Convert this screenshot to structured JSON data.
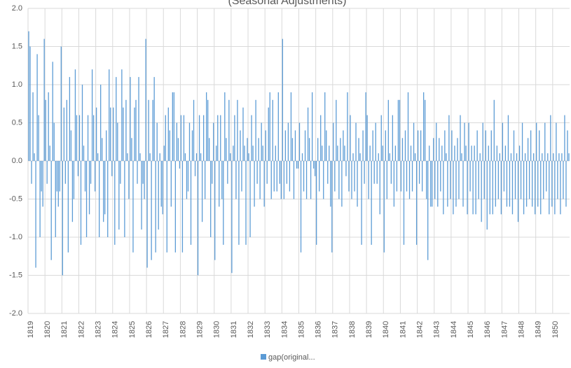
{
  "chart_data": {
    "type": "bar",
    "title": "(Seasonal Adjustments)",
    "color": "#5b9bd5",
    "grid": true,
    "legend": "bottom",
    "ylim": [
      -2,
      2
    ],
    "yticks": [
      {
        "value": -2,
        "label": "-2.0"
      },
      -1.5,
      {
        "value": -1,
        "label": "-1.0"
      },
      -0.5,
      {
        "value": 0,
        "label": "0.0"
      },
      0.5,
      {
        "value": 1,
        "label": "1.0"
      },
      1.5,
      {
        "value": 2,
        "label": "2.0"
      }
    ],
    "series": [
      {
        "name": "gap(original...",
        "color": "#5b9bd5",
        "values": [
          1.7,
          1.5,
          -0.3,
          0.9,
          0.1,
          -1.4,
          1.4,
          0.6,
          -1.0,
          -0.4,
          -0.6,
          1.6,
          0.8,
          -0.3,
          0.9,
          0.2,
          -1.3,
          1.3,
          0.5,
          -1.0,
          -0.4,
          -0.6,
          -0.4,
          1.5,
          -1.5,
          0.7,
          -0.3,
          0.8,
          -1.2,
          1.1,
          0.4,
          -0.8,
          -0.5,
          1.2,
          0.6,
          -0.2,
          0.6,
          -1.1,
          1.0,
          0.2,
          -0.4,
          -1.0,
          0.6,
          -0.7,
          -0.3,
          1.2,
          0.6,
          -0.4,
          0.7,
          0.1,
          -1.0,
          1.0,
          0.3,
          -0.8,
          -0.7,
          0.4,
          -1.0,
          1.2,
          0.7,
          -0.2,
          0.7,
          -1.1,
          1.1,
          0.5,
          -0.9,
          -0.3,
          1.2,
          0.7,
          -1.0,
          0.8,
          0.1,
          -0.5,
          1.1,
          0.3,
          -1.2,
          0.7,
          0.8,
          -0.3,
          1.1,
          0.1,
          -0.9,
          -0.3,
          -0.5,
          1.6,
          -1.4,
          0.8,
          0.1,
          -1.3,
          0.8,
          1.1,
          -1.2,
          0.5,
          -0.9,
          0.1,
          -0.6,
          -0.7,
          0.2,
          0.6,
          -1.2,
          0.7,
          0.4,
          -0.6,
          0.9,
          0.9,
          -1.2,
          0.5,
          0.3,
          -0.1,
          0.6,
          -1.2,
          0.6,
          0.1,
          -0.5,
          -0.4,
          0.5,
          -1.1,
          0.4,
          0.8,
          -0.2,
          0.1,
          -1.5,
          0.6,
          0.1,
          -0.8,
          0.6,
          -0.5,
          0.9,
          0.8,
          0.3,
          -1.0,
          -0.3,
          0.5,
          -1.3,
          0.2,
          0.6,
          -0.6,
          0.6,
          -0.5,
          -1.1,
          0.9,
          0.3,
          -0.3,
          0.8,
          0.1,
          -1.47,
          0.2,
          0.6,
          -0.5,
          0.8,
          -1.1,
          0.4,
          -0.4,
          0.7,
          0.2,
          -1.1,
          0.3,
          0.1,
          -1.0,
          0.6,
          0.2,
          -0.6,
          0.8,
          -0.3,
          0.3,
          -0.5,
          0.5,
          0.2,
          -0.6,
          0.4,
          -0.3,
          0.7,
          0.9,
          -0.5,
          0.8,
          -0.4,
          0.2,
          -0.4,
          0.9,
          -0.3,
          -0.5,
          1.6,
          -0.5,
          0.4,
          -0.3,
          0.5,
          -0.4,
          0.9,
          0.3,
          -0.5,
          0.4,
          -0.1,
          -0.1,
          0.5,
          -1.2,
          0.1,
          -0.4,
          0.4,
          -0.5,
          0.7,
          0.3,
          -0.5,
          0.9,
          -0.1,
          -0.2,
          -1.1,
          0.3,
          -0.4,
          0.6,
          0.2,
          -0.5,
          0.9,
          0.4,
          -0.3,
          0.2,
          -0.6,
          -1.2,
          0.5,
          -0.4,
          0.8,
          0.2,
          -0.5,
          0.3,
          -0.6,
          0.4,
          0.2,
          -0.2,
          0.9,
          -0.4,
          0.6,
          -0.5,
          0.1,
          -0.4,
          0.5,
          -0.6,
          0.3,
          0.1,
          -1.1,
          0.4,
          -0.3,
          0.9,
          0.6,
          -0.5,
          0.2,
          -1.1,
          0.4,
          -0.3,
          0.5,
          -0.3,
          0.1,
          -0.7,
          0.6,
          0.2,
          -1.2,
          0.4,
          -0.5,
          0.8,
          0.1,
          -0.3,
          0.6,
          -0.6,
          0.2,
          -0.4,
          0.8,
          0.8,
          -0.4,
          0.3,
          -1.1,
          0.4,
          -0.4,
          0.9,
          -0.5,
          0.2,
          -0.4,
          0.5,
          0.1,
          -1.1,
          0.4,
          -0.3,
          0.4,
          -0.4,
          0.9,
          0.8,
          -0.5,
          -1.3,
          0.2,
          -0.6,
          -0.6,
          0.3,
          -0.5,
          0.5,
          -0.6,
          0.3,
          -0.4,
          0.2,
          -0.7,
          0.4,
          0.1,
          -0.6,
          0.6,
          -0.5,
          0.4,
          -0.7,
          0.2,
          -0.6,
          0.3,
          -0.5,
          0.6,
          0.1,
          -0.6,
          0.5,
          0.2,
          -0.7,
          0.5,
          -0.4,
          0.2,
          -0.7,
          0.2,
          -0.7,
          0.4,
          -0.5,
          0.1,
          -0.8,
          0.5,
          -0.5,
          0.4,
          -0.9,
          0.2,
          -0.7,
          0.4,
          -0.7,
          0.8,
          -0.6,
          0.2,
          -0.5,
          0.1,
          -0.7,
          0.5,
          -0.4,
          0.2,
          -0.6,
          0.6,
          -0.6,
          0.1,
          -0.7,
          0.4,
          -0.5,
          0.1,
          -0.8,
          0.2,
          -0.5,
          0.5,
          -0.7,
          0.1,
          -0.6,
          0.3,
          -0.5,
          0.4,
          -0.6,
          0.1,
          -0.7,
          0.5,
          -0.6,
          0.4,
          -0.7,
          0.1,
          -0.5,
          0.5,
          -0.4,
          0.1,
          -0.7,
          0.6,
          -0.6,
          0.1,
          -0.7,
          0.5,
          -0.5,
          0.1,
          -0.7,
          0.1,
          -0.5,
          0.6,
          -0.6,
          0.4,
          0.1
        ]
      }
    ],
    "categories": [
      "1819",
      null,
      null,
      null,
      null,
      null,
      null,
      null,
      null,
      null,
      null,
      null,
      "1820",
      null,
      null,
      null,
      null,
      null,
      null,
      null,
      null,
      null,
      null,
      null,
      "1821",
      null,
      null,
      null,
      null,
      null,
      null,
      null,
      null,
      null,
      null,
      null,
      "1822",
      null,
      null,
      null,
      null,
      null,
      null,
      null,
      null,
      null,
      null,
      null,
      "1823",
      null,
      null,
      null,
      null,
      null,
      null,
      null,
      null,
      null,
      null,
      null,
      "1824",
      null,
      null,
      null,
      null,
      null,
      null,
      null,
      null,
      null,
      null,
      null,
      "1825",
      null,
      null,
      null,
      null,
      null,
      null,
      null,
      null,
      null,
      null,
      null,
      "1826",
      null,
      null,
      null,
      null,
      null,
      null,
      null,
      null,
      null,
      null,
      null,
      "1827",
      null,
      null,
      null,
      null,
      null,
      null,
      null,
      null,
      null,
      null,
      null,
      "1828",
      null,
      null,
      null,
      null,
      null,
      null,
      null,
      null,
      null,
      null,
      null,
      "1829",
      null,
      null,
      null,
      null,
      null,
      null,
      null,
      null,
      null,
      null,
      null,
      "1830",
      null,
      null,
      null,
      null,
      null,
      null,
      null,
      null,
      null,
      null,
      null,
      "1831",
      null,
      null,
      null,
      null,
      null,
      null,
      null,
      null,
      null,
      null,
      null,
      "1832",
      null,
      null,
      null,
      null,
      null,
      null,
      null,
      null,
      null,
      null,
      null,
      "1833",
      null,
      null,
      null,
      null,
      null,
      null,
      null,
      null,
      null,
      null,
      null,
      "1834",
      null,
      null,
      null,
      null,
      null,
      null,
      null,
      null,
      null,
      null,
      null,
      "1835",
      null,
      null,
      null,
      null,
      null,
      null,
      null,
      null,
      null,
      null,
      null,
      "1836",
      null,
      null,
      null,
      null,
      null,
      null,
      null,
      null,
      null,
      null,
      null,
      "1837",
      null,
      null,
      null,
      null,
      null,
      null,
      null,
      null,
      null,
      null,
      null,
      "1838",
      null,
      null,
      null,
      null,
      null,
      null,
      null,
      null,
      null,
      null,
      null,
      "1839",
      null,
      null,
      null,
      null,
      null,
      null,
      null,
      null,
      null,
      null,
      null,
      "1840",
      null,
      null,
      null,
      null,
      null,
      null,
      null,
      null,
      null,
      null,
      null,
      "1841",
      null,
      null,
      null,
      null,
      null,
      null,
      null,
      null,
      null,
      null,
      null,
      "1842",
      null,
      null,
      null,
      null,
      null,
      null,
      null,
      null,
      null,
      null,
      null,
      "1843",
      null,
      null,
      null,
      null,
      null,
      null,
      null,
      null,
      null,
      null,
      null,
      "1844",
      null,
      null,
      null,
      null,
      null,
      null,
      null,
      null,
      null,
      null,
      null,
      "1845",
      null,
      null,
      null,
      null,
      null,
      null,
      null,
      null,
      null,
      null,
      null,
      "1846",
      null,
      null,
      null,
      null,
      null,
      null,
      null,
      null,
      null,
      null,
      null,
      "1847",
      null,
      null,
      null,
      null,
      null,
      null,
      null,
      null,
      null,
      null,
      null,
      "1848",
      null,
      null,
      null,
      null,
      null,
      null,
      null,
      null,
      null,
      null,
      null,
      "1849",
      null,
      null,
      null,
      null,
      null,
      null,
      null,
      null,
      null,
      null,
      null,
      "1850",
      null,
      null,
      null,
      null,
      null,
      null,
      null,
      null,
      null,
      null,
      null
    ]
  }
}
